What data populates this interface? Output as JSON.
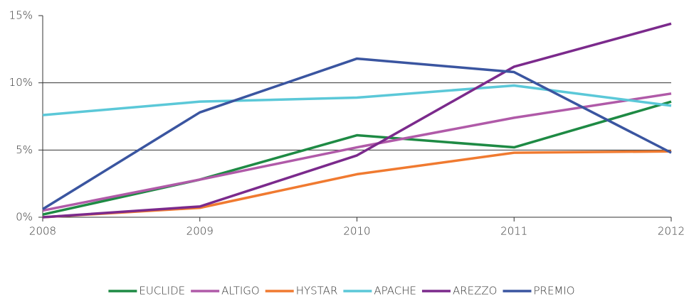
{
  "chart_data": {
    "type": "line",
    "x": [
      2008,
      2009,
      2010,
      2011,
      2012
    ],
    "xlim": [
      2008,
      2012
    ],
    "xticks": [
      2008,
      2009,
      2010,
      2011,
      2012
    ],
    "ylim": [
      0,
      15
    ],
    "yticks": [
      {
        "value": 0,
        "label": "0%"
      },
      {
        "value": 5,
        "label": "5%"
      },
      {
        "value": 10,
        "label": "10%"
      },
      {
        "value": 15,
        "label": "15%"
      }
    ],
    "grid": true,
    "legend": "bottom",
    "series": [
      {
        "name": "EUCLIDE",
        "color": "#1e8a44",
        "values": [
          0.2,
          2.8,
          6.1,
          5.2,
          8.6
        ]
      },
      {
        "name": "ALTIGO",
        "color": "#b05aa8",
        "values": [
          0.5,
          2.8,
          5.2,
          7.4,
          9.2
        ]
      },
      {
        "name": "HYSTAR",
        "color": "#f07a30",
        "values": [
          0,
          0.7,
          3.2,
          4.8,
          4.9
        ]
      },
      {
        "name": "APACHE",
        "color": "#5bc8d8",
        "values": [
          7.6,
          8.6,
          8.9,
          9.8,
          8.3
        ]
      },
      {
        "name": "AREZZO",
        "color": "#7b2a8c",
        "values": [
          0,
          0.8,
          4.6,
          11.2,
          14.4
        ]
      },
      {
        "name": "PREMIO",
        "color": "#3a55a0",
        "values": [
          0.6,
          7.8,
          11.8,
          10.8,
          4.8
        ]
      }
    ]
  }
}
